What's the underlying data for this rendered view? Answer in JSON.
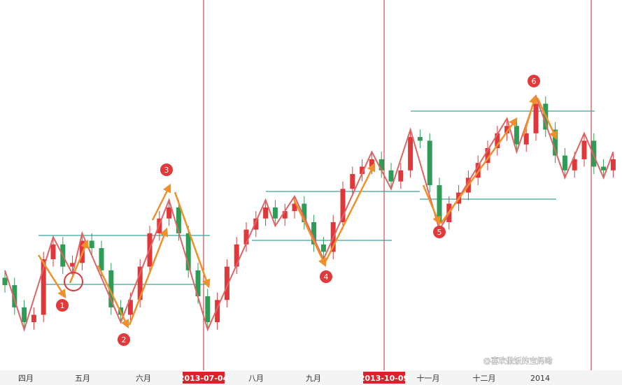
{
  "chart_data": {
    "type": "candlestick",
    "categories": [
      "四月",
      "五月",
      "六月",
      "2013-07-04",
      "八月",
      "九月",
      "2013-10-09",
      "十一月",
      "十二月",
      "2014"
    ],
    "ylim": [
      0,
      100
    ],
    "up_color": "#e0383a",
    "down_color": "#2e9b57",
    "candles": {
      "open": [
        25,
        23,
        17,
        13,
        15,
        30,
        34,
        28,
        29,
        35,
        33,
        27,
        17,
        15,
        19,
        28,
        37,
        41,
        44,
        37,
        27,
        20,
        13,
        19,
        28,
        34,
        38,
        41,
        44,
        41,
        43,
        45,
        40,
        34,
        32,
        40,
        49,
        53,
        55,
        57,
        54,
        51,
        54,
        63,
        62,
        50,
        40,
        45,
        48,
        52,
        56,
        60,
        64,
        66,
        61,
        64,
        72,
        65,
        58,
        54,
        57,
        62,
        55,
        54
      ],
      "high": [
        27,
        25,
        19,
        17,
        32,
        36,
        36,
        31,
        37,
        37,
        35,
        29,
        19,
        21,
        30,
        39,
        43,
        46,
        46,
        39,
        29,
        22,
        21,
        30,
        36,
        40,
        43,
        46,
        46,
        45,
        47,
        47,
        42,
        36,
        42,
        51,
        55,
        57,
        59,
        59,
        56,
        56,
        65,
        65,
        64,
        52,
        47,
        50,
        54,
        58,
        62,
        66,
        68,
        68,
        66,
        74,
        74,
        67,
        60,
        59,
        64,
        64,
        57,
        59
      ],
      "low": [
        21,
        15,
        11,
        11,
        13,
        28,
        26,
        26,
        27,
        31,
        25,
        15,
        13,
        13,
        17,
        26,
        35,
        39,
        35,
        25,
        18,
        11,
        11,
        17,
        26,
        32,
        36,
        39,
        39,
        39,
        41,
        38,
        32,
        30,
        30,
        38,
        47,
        51,
        53,
        52,
        49,
        49,
        52,
        60,
        48,
        38,
        38,
        43,
        46,
        50,
        54,
        58,
        62,
        59,
        59,
        62,
        63,
        56,
        52,
        52,
        55,
        53,
        52,
        52
      ],
      "close": [
        23,
        17,
        13,
        15,
        30,
        34,
        28,
        29,
        35,
        33,
        27,
        17,
        15,
        19,
        28,
        37,
        41,
        44,
        37,
        27,
        20,
        13,
        19,
        28,
        34,
        38,
        41,
        44,
        41,
        43,
        45,
        40,
        34,
        32,
        40,
        49,
        53,
        55,
        57,
        54,
        51,
        54,
        63,
        62,
        50,
        40,
        45,
        48,
        52,
        56,
        60,
        64,
        66,
        61,
        64,
        72,
        65,
        58,
        54,
        57,
        62,
        55,
        54,
        57
      ]
    },
    "zigzag": {
      "color": "#e06464",
      "x": [
        0,
        2,
        5,
        7,
        8,
        12,
        17,
        21,
        27,
        28,
        30,
        33,
        38,
        40,
        42,
        45,
        52,
        53,
        55,
        58,
        60,
        62,
        63
      ],
      "values": [
        27,
        11,
        36,
        26,
        37,
        13,
        46,
        11,
        46,
        39,
        47,
        30,
        59,
        49,
        65,
        38,
        68,
        59,
        74,
        52,
        64,
        52,
        59
      ]
    },
    "markers": [
      "1",
      "2",
      "3",
      "4",
      "5",
      "6"
    ],
    "watermark": "@喜欢做饭的宝妈呦"
  }
}
